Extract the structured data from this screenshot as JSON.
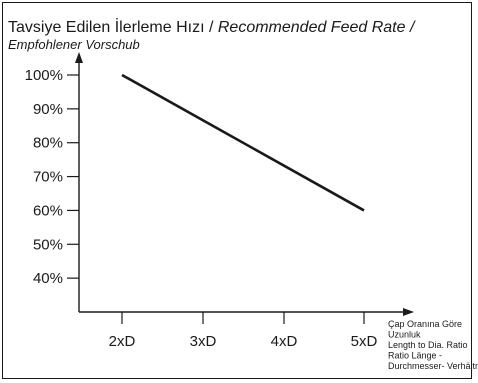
{
  "chart_data": {
    "type": "line",
    "title": {
      "part1": "Tavsiye Edilen İlerleme Hızı / ",
      "part2": "Recommended Feed Rate /"
    },
    "subtitle": "Empfohlener Vorschub",
    "categories": [
      "2xD",
      "3xD",
      "4xD",
      "5xD"
    ],
    "yticks": [
      "40%",
      "50%",
      "60%",
      "70%",
      "80%",
      "90%",
      "100%"
    ],
    "ylim": [
      30,
      107
    ],
    "series": [
      {
        "x": [
          "2xD",
          "5xD"
        ],
        "values": [
          100,
          60
        ]
      }
    ],
    "xlabel": [
      "Çap Oranına Göre",
      "Uzunluk",
      "Length to Dia. Ratio",
      "Ratio Länge -",
      "Durchmesser- Verhältnis"
    ],
    "grid": false,
    "legend": "none"
  }
}
